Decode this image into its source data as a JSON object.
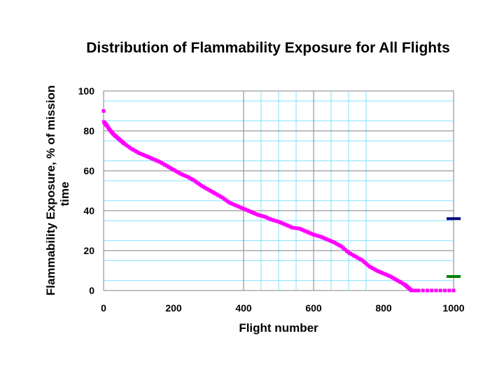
{
  "chart_data": {
    "type": "scatter",
    "title": "Distribution of Flammability Exposure for All Flights",
    "xlabel": "Flight number",
    "ylabel_line1": "Flammability Exposure, % of mission",
    "ylabel_line2": "time",
    "xlim": [
      0,
      1000
    ],
    "ylim": [
      0,
      100
    ],
    "xticks": [
      "0",
      "200",
      "400",
      "600",
      "800",
      "1000"
    ],
    "yticks": [
      "0",
      "20",
      "40",
      "60",
      "80",
      "100"
    ],
    "grid": "on",
    "legend": "none",
    "series": [
      {
        "color": "#ff00ff",
        "points": [
          [
            0,
            90
          ],
          [
            1,
            84.5
          ],
          [
            5,
            83.5
          ],
          [
            10,
            82.5
          ],
          [
            20,
            80
          ],
          [
            30,
            78
          ],
          [
            40,
            76.5
          ],
          [
            50,
            75
          ],
          [
            60,
            73.5
          ],
          [
            80,
            71
          ],
          [
            100,
            69
          ],
          [
            120,
            67.5
          ],
          [
            140,
            66
          ],
          [
            160,
            64.5
          ],
          [
            180,
            62.5
          ],
          [
            200,
            60.5
          ],
          [
            220,
            58.5
          ],
          [
            240,
            57
          ],
          [
            260,
            55
          ],
          [
            280,
            52.5
          ],
          [
            300,
            50.5
          ],
          [
            320,
            48.5
          ],
          [
            340,
            46.5
          ],
          [
            360,
            44
          ],
          [
            380,
            42.5
          ],
          [
            400,
            41
          ],
          [
            420,
            39.5
          ],
          [
            440,
            38
          ],
          [
            460,
            37
          ],
          [
            480,
            35.5
          ],
          [
            500,
            34.5
          ],
          [
            520,
            33
          ],
          [
            540,
            31.5
          ],
          [
            560,
            31
          ],
          [
            580,
            29.5
          ],
          [
            600,
            28
          ],
          [
            620,
            27
          ],
          [
            640,
            25.5
          ],
          [
            660,
            24
          ],
          [
            680,
            22
          ],
          [
            700,
            19
          ],
          [
            720,
            17
          ],
          [
            740,
            15
          ],
          [
            760,
            12
          ],
          [
            780,
            10
          ],
          [
            800,
            8.5
          ],
          [
            820,
            7
          ],
          [
            840,
            5
          ],
          [
            860,
            3
          ],
          [
            870,
            1.5
          ],
          [
            880,
            0
          ],
          [
            900,
            0
          ],
          [
            950,
            0
          ],
          [
            1000,
            0
          ]
        ]
      }
    ],
    "markers": [
      {
        "y": 36,
        "color": "#000080"
      },
      {
        "y": 7,
        "color": "#008000"
      }
    ],
    "colors": {
      "major_grid": "#808080",
      "minor_grid": "#80e0ff",
      "series": "#ff00ff"
    }
  }
}
